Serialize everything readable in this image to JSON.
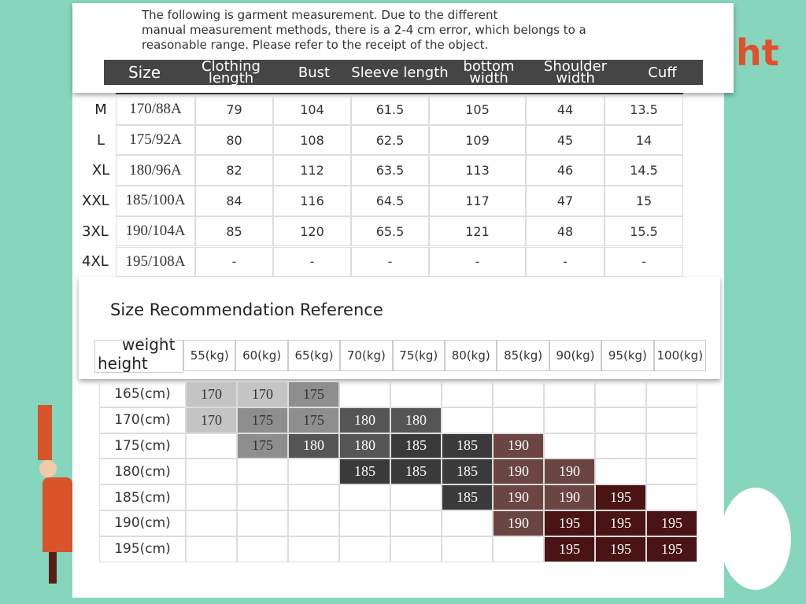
{
  "decor_text": "ht",
  "note": [
    "The following is garment measurement. Due to the different",
    "manual measurement methods, there is a 2-4 cm error, which belongs to a",
    "reasonable range. Please refer to the receipt of the object."
  ],
  "measure_table": {
    "headers": [
      "Size",
      "Clothing length",
      "Bust",
      "Sleeve length",
      "bottom width",
      "Shoulder width",
      "Cuff"
    ],
    "rows": [
      {
        "label": "M",
        "cells": [
          "170/88A",
          79,
          104,
          61.5,
          105,
          44,
          13.5
        ]
      },
      {
        "label": "L",
        "cells": [
          "175/92A",
          80,
          108,
          62.5,
          109,
          45,
          14
        ]
      },
      {
        "label": "XL",
        "cells": [
          "180/96A",
          82,
          112,
          63.5,
          113,
          46,
          14.5
        ]
      },
      {
        "label": "XXL",
        "cells": [
          "185/100A",
          84,
          116,
          64.5,
          117,
          47,
          15
        ]
      },
      {
        "label": "3XL",
        "cells": [
          "190/104A",
          85,
          120,
          65.5,
          121,
          48,
          15.5
        ]
      },
      {
        "label": "4XL",
        "cells": [
          "195/108A",
          "-",
          "-",
          "-",
          "-",
          "-",
          "-"
        ]
      }
    ]
  },
  "recommendation": {
    "title": "Size Recommendation Reference",
    "corner_weight": "weight",
    "corner_height": "height",
    "weights": [
      "55(kg)",
      "60(kg)",
      "65(kg)",
      "70(kg)",
      "75(kg)",
      "80(kg)",
      "85(kg)",
      "90(kg)",
      "95(kg)",
      "100(kg)"
    ],
    "rows": [
      {
        "height": "165(cm)",
        "cells": [
          170,
          170,
          175,
          null,
          null,
          null,
          null,
          null,
          null,
          null
        ]
      },
      {
        "height": "170(cm)",
        "cells": [
          170,
          175,
          175,
          180,
          180,
          null,
          null,
          null,
          null,
          null
        ]
      },
      {
        "height": "175(cm)",
        "cells": [
          null,
          175,
          180,
          180,
          185,
          185,
          190,
          null,
          null,
          null
        ]
      },
      {
        "height": "180(cm)",
        "cells": [
          null,
          null,
          null,
          185,
          185,
          185,
          190,
          190,
          null,
          null
        ]
      },
      {
        "height": "185(cm)",
        "cells": [
          null,
          null,
          null,
          null,
          null,
          185,
          190,
          190,
          195,
          null
        ]
      },
      {
        "height": "190(cm)",
        "cells": [
          null,
          null,
          null,
          null,
          null,
          null,
          190,
          195,
          195,
          195
        ]
      },
      {
        "height": "195(cm)",
        "cells": [
          null,
          null,
          null,
          null,
          null,
          null,
          null,
          195,
          195,
          195
        ]
      }
    ]
  }
}
